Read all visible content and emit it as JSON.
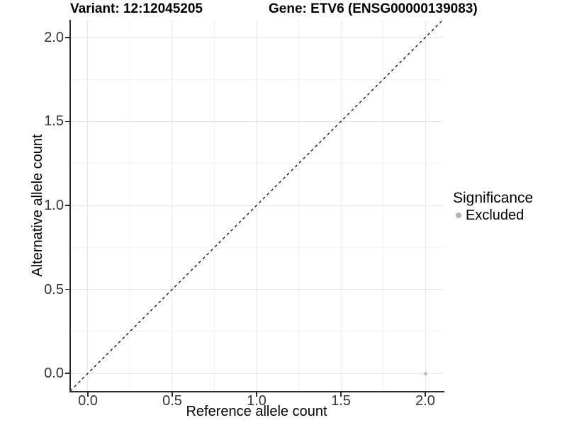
{
  "titles": {
    "variant": "Variant: 12:12045205",
    "gene": "Gene: ETV6 (ENSG00000139083)"
  },
  "chart_data": {
    "type": "scatter",
    "xlabel": "Reference allele count",
    "ylabel": "Alternative allele count",
    "xlim": [
      -0.105,
      2.105
    ],
    "ylim": [
      -0.105,
      2.105
    ],
    "xticks": [
      0,
      0.5,
      1,
      1.5,
      2
    ],
    "xtick_labels": [
      "0.0",
      "0.5",
      "1.0",
      "1.5",
      "2.0"
    ],
    "yticks": [
      0,
      0.5,
      1,
      1.5,
      2
    ],
    "ytick_labels": [
      "0.0",
      "0.5",
      "1.0",
      "1.5",
      "2.0"
    ],
    "x_minor_ticks": [
      0.25,
      0.75,
      1.25,
      1.75
    ],
    "y_minor_ticks": [
      0.25,
      0.75,
      1.25,
      1.75
    ],
    "grid": "major+minor",
    "reference_line": {
      "slope": 1,
      "intercept": 0,
      "style": "dashed"
    },
    "series": [
      {
        "name": "Excluded",
        "color": "#bdbdbd",
        "points": [
          {
            "x": 2.0,
            "y": 0.0
          }
        ]
      }
    ],
    "legend": {
      "title": "Significance",
      "position": "right",
      "items": [
        {
          "label": "Excluded",
          "color": "#b5b5b5"
        }
      ]
    }
  },
  "colors": {
    "background": "#ffffff",
    "grid_major": "#e6e6e6",
    "grid_minor": "#f2f2f2",
    "axis_line": "#2b2b2b",
    "reference_line": "#1a1a1a",
    "tick_label": "#333333"
  }
}
